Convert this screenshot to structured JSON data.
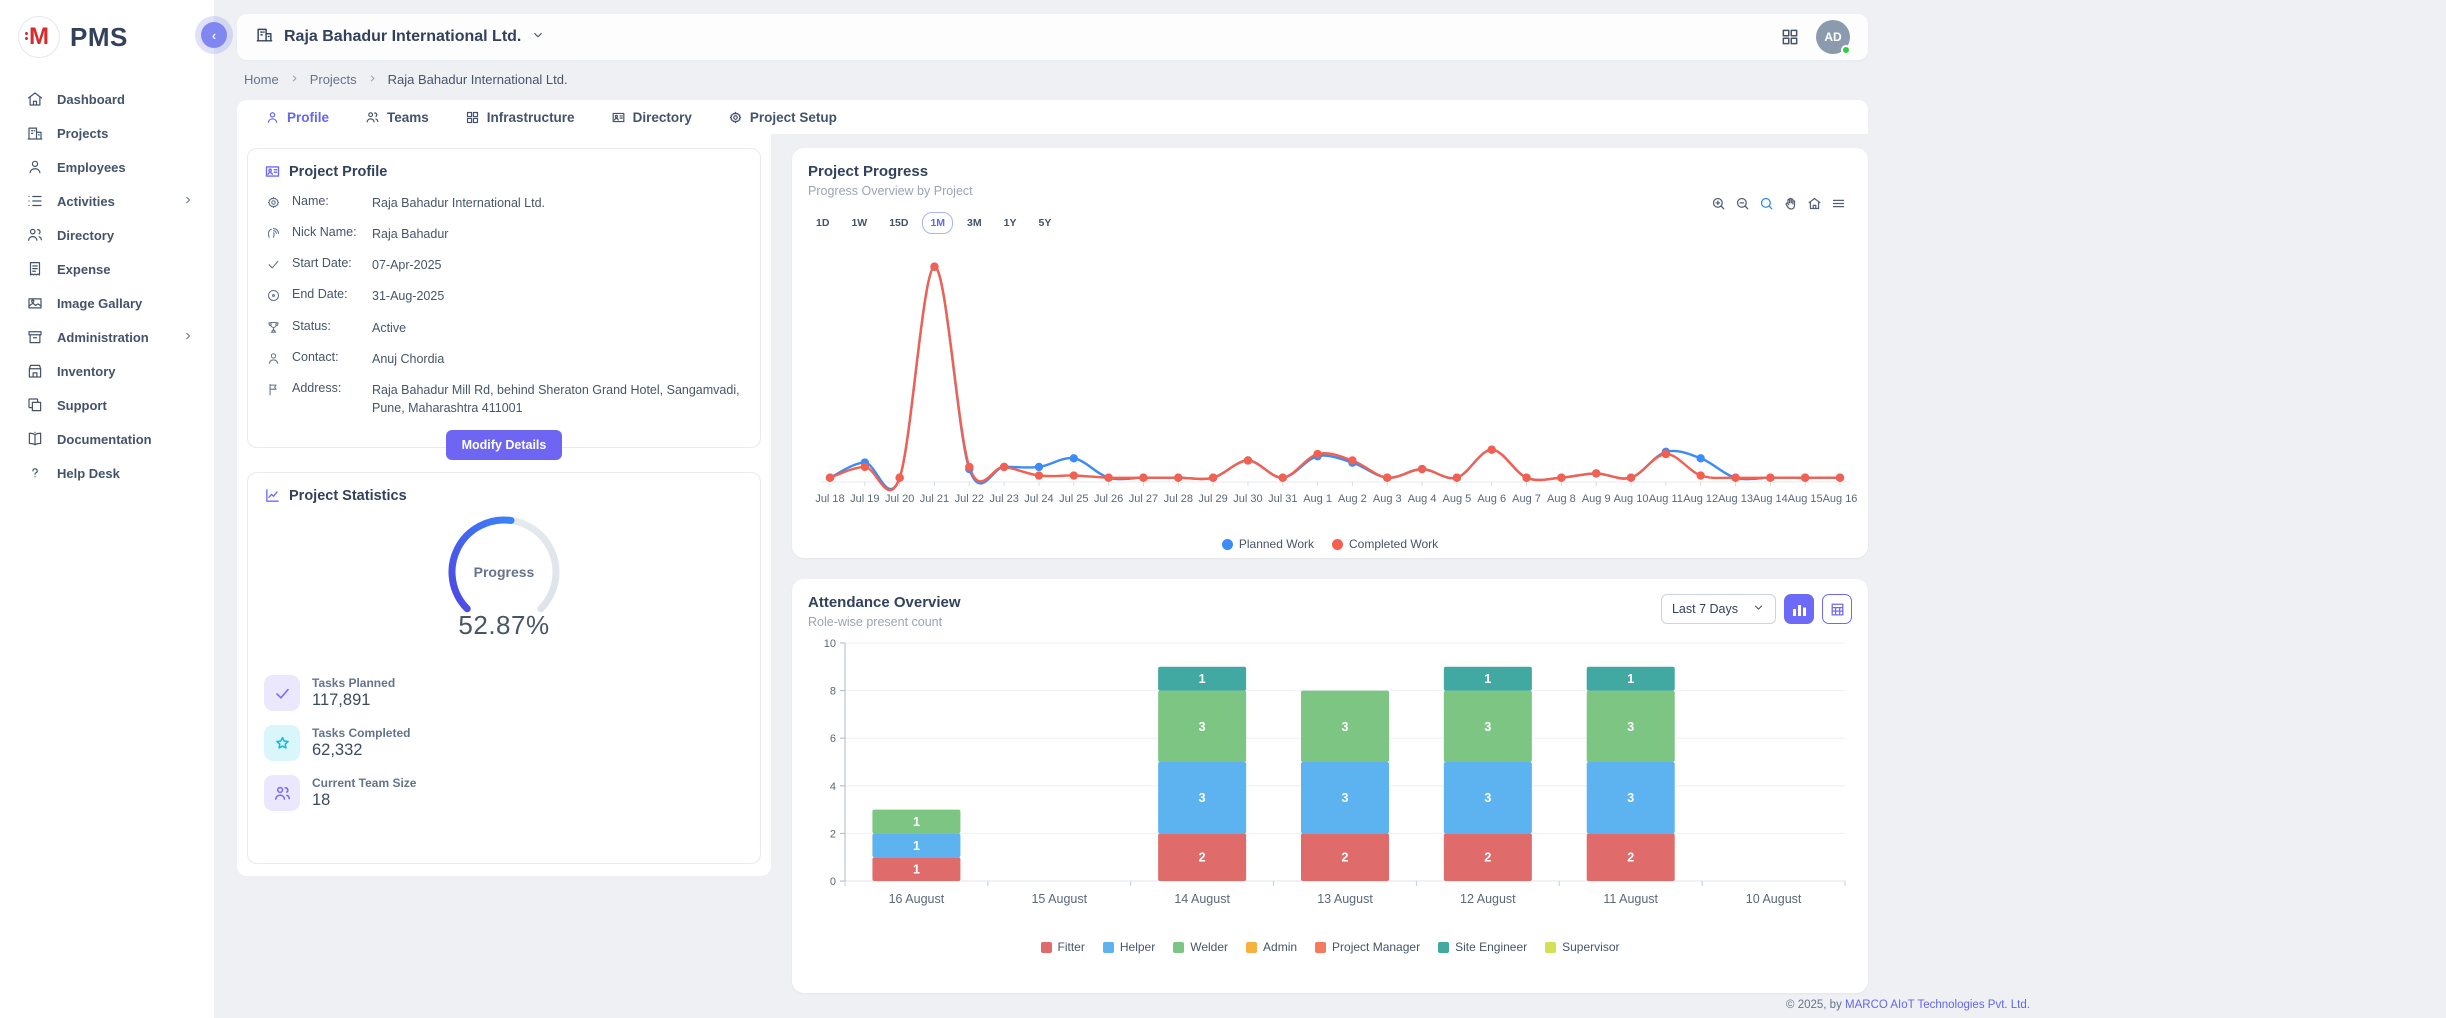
{
  "app": {
    "logo_letter": "M",
    "logo_text": "PMS"
  },
  "sidebar": {
    "items": [
      {
        "label": "Dashboard",
        "icon": "home",
        "submenu": false
      },
      {
        "label": "Projects",
        "icon": "building",
        "submenu": false
      },
      {
        "label": "Employees",
        "icon": "person",
        "submenu": false
      },
      {
        "label": "Activities",
        "icon": "list",
        "submenu": true
      },
      {
        "label": "Directory",
        "icon": "people",
        "submenu": false
      },
      {
        "label": "Expense",
        "icon": "receipt",
        "submenu": false
      },
      {
        "label": "Image Gallary",
        "icon": "image",
        "submenu": false
      },
      {
        "label": "Administration",
        "icon": "archive",
        "submenu": true
      },
      {
        "label": "Inventory",
        "icon": "store",
        "submenu": false
      },
      {
        "label": "Support",
        "icon": "copy",
        "submenu": false
      },
      {
        "label": "Documentation",
        "icon": "book",
        "submenu": false
      },
      {
        "label": "Help Desk",
        "icon": "help",
        "submenu": false
      }
    ]
  },
  "header": {
    "company": "Raja Bahadur International Ltd.",
    "avatar_initials": "AD"
  },
  "breadcrumb": [
    "Home",
    "Projects",
    "Raja Bahadur International Ltd."
  ],
  "tabs": [
    {
      "label": "Profile",
      "icon": "person",
      "active": true
    },
    {
      "label": "Teams",
      "icon": "people",
      "active": false
    },
    {
      "label": "Infrastructure",
      "icon": "grid",
      "active": false
    },
    {
      "label": "Directory",
      "icon": "card",
      "active": false
    },
    {
      "label": "Project Setup",
      "icon": "gear",
      "active": false
    }
  ],
  "profile_card": {
    "title": "Project Profile",
    "fields": [
      {
        "icon": "gear",
        "label": "Name:",
        "value": "Raja Bahadur International Ltd."
      },
      {
        "icon": "finger",
        "label": "Nick Name:",
        "value": "Raja Bahadur"
      },
      {
        "icon": "check",
        "label": "Start Date:",
        "value": "07-Apr-2025"
      },
      {
        "icon": "target",
        "label": "End Date:",
        "value": "31-Aug-2025"
      },
      {
        "icon": "trophy",
        "label": "Status:",
        "value": "Active"
      },
      {
        "icon": "person",
        "label": "Contact:",
        "value": "Anuj Chordia"
      },
      {
        "icon": "flag",
        "label": "Address:",
        "value": "Raja Bahadur Mill Rd, behind Sheraton Grand Hotel, Sangamvadi, Pune, Maharashtra 411001"
      }
    ],
    "button_label": "Modify Details"
  },
  "stats_card": {
    "title": "Project Statistics",
    "gauge": {
      "label": "Progress",
      "value_text": "52.87%",
      "percent": 52.87
    },
    "metrics": [
      {
        "icon": "check",
        "tone": "purple",
        "label": "Tasks Planned",
        "value": "117,891"
      },
      {
        "icon": "star",
        "tone": "cyan",
        "label": "Tasks Completed",
        "value": "62,332"
      },
      {
        "icon": "people",
        "tone": "purple",
        "label": "Current Team Size",
        "value": "18"
      }
    ]
  },
  "progress_chart": {
    "title": "Project Progress",
    "subtitle": "Progress Overview by Project",
    "ranges": [
      "1D",
      "1W",
      "15D",
      "1M",
      "3M",
      "1Y",
      "5Y"
    ],
    "active_range": "1M",
    "chart_data": {
      "type": "line",
      "x": [
        "Jul 18",
        "Jul 19",
        "Jul 20",
        "Jul 21",
        "Jul 22",
        "Jul 23",
        "Jul 24",
        "Jul 25",
        "Jul 26",
        "Jul 27",
        "Jul 28",
        "Jul 29",
        "Jul 30",
        "Jul 31",
        "Aug 1",
        "Aug 2",
        "Aug 3",
        "Aug 4",
        "Aug 5",
        "Aug 6",
        "Aug 7",
        "Aug 8",
        "Aug 9",
        "Aug 10",
        "Aug 11",
        "Aug 12",
        "Aug 13",
        "Aug 14",
        "Aug 15",
        "Aug 16"
      ],
      "series": [
        {
          "name": "Planned Work",
          "color": "#3d8bf8",
          "values": [
            2,
            9,
            2,
            100,
            6,
            7,
            7,
            11,
            2,
            2,
            2,
            2,
            10,
            2,
            12,
            9,
            2,
            6,
            2,
            15,
            2,
            2,
            4,
            2,
            14,
            11,
            2,
            2,
            2,
            2
          ]
        },
        {
          "name": "Completed Work",
          "color": "#f4604f",
          "values": [
            2,
            7,
            2,
            100,
            7,
            7,
            3,
            3,
            2,
            2,
            2,
            2,
            10,
            2,
            13,
            10,
            2,
            6,
            2,
            15,
            2,
            2,
            4,
            2,
            13,
            3,
            2,
            2,
            2,
            2
          ]
        }
      ],
      "ylim": [
        0,
        105
      ],
      "grid": false,
      "legend_position": "bottom"
    }
  },
  "attendance": {
    "title": "Attendance Overview",
    "subtitle": "Role-wise present count",
    "dropdown_value": "Last 7 Days",
    "chart_data": {
      "type": "bar",
      "stacked": true,
      "categories": [
        "16 August",
        "15 August",
        "14 August",
        "13 August",
        "12 August",
        "11 August",
        "10 August"
      ],
      "series": [
        {
          "name": "Fitter",
          "color": "#e06b6b",
          "values": [
            1,
            0,
            2,
            2,
            2,
            2,
            0
          ]
        },
        {
          "name": "Helper",
          "color": "#5db2f0",
          "values": [
            1,
            0,
            3,
            3,
            3,
            3,
            0
          ]
        },
        {
          "name": "Welder",
          "color": "#7dc583",
          "values": [
            1,
            0,
            3,
            3,
            3,
            3,
            0
          ]
        },
        {
          "name": "Admin",
          "color": "#f7b13f",
          "values": [
            0,
            0,
            0,
            0,
            0,
            0,
            0
          ]
        },
        {
          "name": "Project Manager",
          "color": "#f47b5d",
          "values": [
            0,
            0,
            0,
            0,
            0,
            0,
            0
          ]
        },
        {
          "name": "Site Engineer",
          "color": "#41a8a2",
          "values": [
            0,
            0,
            1,
            0,
            1,
            1,
            0
          ]
        },
        {
          "name": "Supervisor",
          "color": "#d4e157",
          "values": [
            0,
            0,
            0,
            0,
            0,
            0,
            0
          ]
        }
      ],
      "ylim": [
        0,
        10
      ],
      "yticks": [
        0,
        2,
        4,
        6,
        8,
        10
      ],
      "grid": true,
      "legend_position": "bottom"
    }
  },
  "footer": {
    "prefix": "© 2025, by ",
    "link_text": "MARCO AIoT Technologies Pvt. Ltd."
  }
}
